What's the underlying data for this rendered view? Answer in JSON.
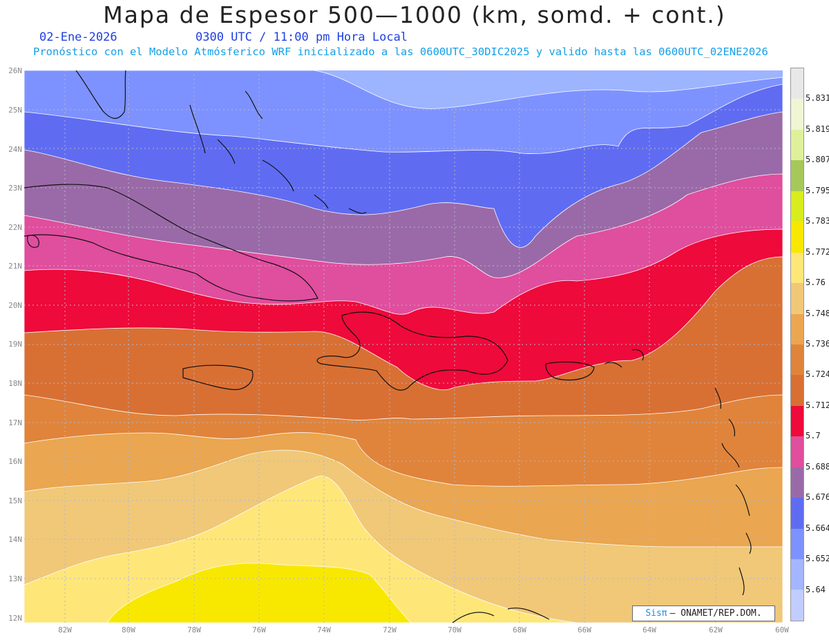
{
  "header": {
    "title": "Mapa de Espesor 500—1000 (km, somd. + cont.)",
    "date": "02-Ene-2026",
    "utc_time": "0300 UTC / 11:00 pm Hora Local",
    "forecast_note": "Pronóstico con el Modelo Atmósferico WRF inicializado a las 0600UTC_30DIC2025 y valido hasta las  0600UTC_02ENE2026"
  },
  "axes": {
    "lat_labels": [
      "26N",
      "25N",
      "24N",
      "23N",
      "22N",
      "21N",
      "20N",
      "19N",
      "18N",
      "17N",
      "16N",
      "15N",
      "14N",
      "13N",
      "12N"
    ],
    "lon_labels": [
      "82W",
      "80W",
      "78W",
      "76W",
      "74W",
      "72W",
      "70W",
      "68W",
      "66W",
      "64W",
      "62W",
      "60W"
    ]
  },
  "legend": {
    "labels": [
      "5.831",
      "5.819",
      "5.807",
      "5.795",
      "5.783",
      "5.772",
      "5.76",
      "5.748",
      "5.736",
      "5.724",
      "5.712",
      "5.7",
      "5.688",
      "5.676",
      "5.664",
      "5.652",
      "5.64"
    ],
    "colors": [
      "#e8e8e8",
      "#f0f5d4",
      "#dff09a",
      "#a6c85a",
      "#d8ec1e",
      "#f8e800",
      "#ffe678",
      "#f0c878",
      "#eaa650",
      "#e0843c",
      "#d87034",
      "#ee0a3a",
      "#e04e9e",
      "#9a6aa8",
      "#5f6cf2",
      "#7e92ff",
      "#a4b6ff",
      "#c2cdff"
    ]
  },
  "credit": {
    "brand": "Sisπ",
    "text": "– ONAMET/REP.DOM."
  },
  "map_colors": {
    "band_1": "#9db4ff",
    "band_2": "#7e92ff",
    "band_3": "#5f6cf2",
    "band_4": "#9a6aa8",
    "band_5": "#e04e9e",
    "band_6": "#ee0a3a",
    "band_7": "#d87034",
    "band_8": "#e0843c",
    "band_9": "#eaa650",
    "band_10": "#f0c878",
    "band_11": "#ffe678",
    "band_12": "#f8e800"
  }
}
